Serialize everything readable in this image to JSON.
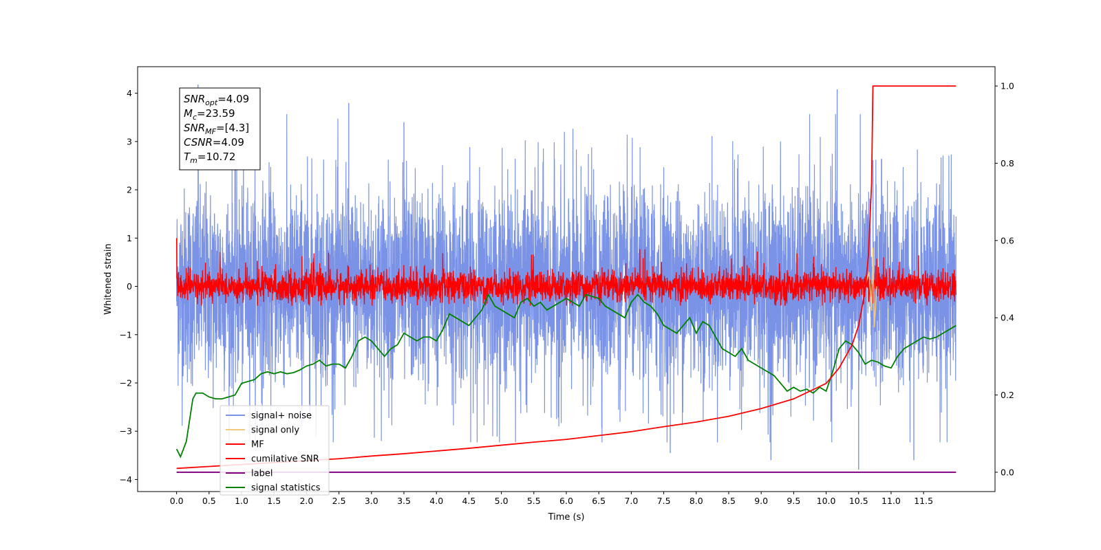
{
  "chart_data": {
    "type": "line",
    "xlabel": "Time (s)",
    "ylabel": "Whitened strain",
    "xlim": [
      -0.6,
      12.6
    ],
    "ylim_left": [
      -4.25,
      4.55
    ],
    "ylim_right": [
      -0.05,
      1.05
    ],
    "x_ticks": [
      "0.0",
      "0.5",
      "1.0",
      "1.5",
      "2.0",
      "2.5",
      "3.0",
      "3.5",
      "4.0",
      "4.5",
      "5.0",
      "5.5",
      "6.0",
      "6.5",
      "7.0",
      "7.5",
      "8.0",
      "8.5",
      "9.0",
      "9.5",
      "10.0",
      "10.5",
      "11.0",
      "11.5"
    ],
    "y_ticks_left": [
      "4",
      "3",
      "2",
      "1",
      "0",
      "−1",
      "−2",
      "−3",
      "−4"
    ],
    "y_ticks_right": [
      "1.0",
      "0.8",
      "0.6",
      "0.4",
      "0.2",
      "0.0"
    ],
    "annotation": {
      "lines": [
        {
          "sym": "SNR",
          "sub": "opt",
          "val": "=4.09"
        },
        {
          "sym": "M",
          "sub": "c",
          "val": "=23.59"
        },
        {
          "sym": "SNR",
          "sub": "MF",
          "val": "=[4.3]"
        },
        {
          "sym": "CSNR",
          "sub": "",
          "val": "=4.09"
        },
        {
          "sym": "T",
          "sub": "m",
          "val": "=10.72"
        }
      ]
    },
    "legend": {
      "placement": "lower-left",
      "entries": [
        {
          "label": "signal+ noise",
          "color": "#7b93e6"
        },
        {
          "label": "signal only",
          "color": "#f5c87a"
        },
        {
          "label": "MF",
          "color": "#ff0000"
        },
        {
          "label": "cumilative SNR",
          "color": "#ff0000"
        },
        {
          "label": "label",
          "color": "#800080"
        },
        {
          "label": "signal statistics",
          "color": "#008000"
        }
      ]
    },
    "series": [
      {
        "name": "signal+ noise",
        "axis": "left",
        "color": "#7b93e6",
        "x_range": [
          0,
          12
        ],
        "amplitude_range": [
          -3.8,
          4.2
        ],
        "spikes": [
          [
            0.33,
            4.18
          ],
          [
            2.65,
            3.8
          ],
          [
            3.5,
            3.4
          ],
          [
            10.17,
            4.08
          ],
          [
            10.5,
            -3.8
          ],
          [
            7.6,
            -3.45
          ],
          [
            9.15,
            -3.6
          ],
          [
            11.35,
            -3.6
          ]
        ]
      },
      {
        "name": "signal only",
        "axis": "left",
        "color": "#f5c87a",
        "x": [
          10.6,
          10.66,
          10.7,
          10.72,
          10.74,
          10.78
        ],
        "y": [
          0.0,
          0.3,
          -0.5,
          0.8,
          -0.85,
          0.0
        ]
      },
      {
        "name": "MF",
        "axis": "left",
        "color": "#ff0000",
        "x_range": [
          0,
          12
        ],
        "amplitude_range": [
          -0.4,
          0.85
        ],
        "start_value": 1.0
      },
      {
        "name": "cumilative SNR",
        "axis": "right",
        "color": "#ff0000",
        "x": [
          0.0,
          0.5,
          1.0,
          1.5,
          2.0,
          2.5,
          3.0,
          3.5,
          4.0,
          4.5,
          5.0,
          5.5,
          6.0,
          6.5,
          7.0,
          7.5,
          8.0,
          8.5,
          9.0,
          9.5,
          10.0,
          10.2,
          10.4,
          10.5,
          10.6,
          10.65,
          10.7,
          10.72,
          11.0,
          11.5,
          12.0
        ],
        "y": [
          0.01,
          0.015,
          0.02,
          0.025,
          0.03,
          0.035,
          0.042,
          0.048,
          0.055,
          0.062,
          0.07,
          0.078,
          0.085,
          0.095,
          0.105,
          0.118,
          0.13,
          0.145,
          0.165,
          0.19,
          0.23,
          0.27,
          0.33,
          0.38,
          0.47,
          0.56,
          0.75,
          1.0,
          1.0,
          1.0,
          1.0
        ]
      },
      {
        "name": "label",
        "axis": "right",
        "color": "#800080",
        "x": [
          0.0,
          12.0
        ],
        "y": [
          0.0,
          0.0
        ]
      },
      {
        "name": "signal statistics",
        "axis": "right",
        "color": "#008000",
        "x": [
          0.0,
          0.06,
          0.15,
          0.25,
          0.3,
          0.4,
          0.5,
          0.6,
          0.7,
          0.8,
          0.9,
          1.0,
          1.1,
          1.2,
          1.3,
          1.4,
          1.5,
          1.6,
          1.7,
          1.8,
          1.9,
          2.0,
          2.1,
          2.2,
          2.3,
          2.4,
          2.5,
          2.6,
          2.7,
          2.8,
          2.9,
          3.0,
          3.1,
          3.2,
          3.3,
          3.4,
          3.5,
          3.6,
          3.7,
          3.8,
          3.9,
          4.0,
          4.1,
          4.2,
          4.3,
          4.4,
          4.5,
          4.6,
          4.7,
          4.8,
          4.9,
          5.0,
          5.1,
          5.2,
          5.3,
          5.4,
          5.5,
          5.6,
          5.7,
          5.8,
          5.9,
          6.0,
          6.1,
          6.2,
          6.3,
          6.4,
          6.5,
          6.6,
          6.7,
          6.8,
          6.9,
          7.0,
          7.1,
          7.2,
          7.3,
          7.4,
          7.5,
          7.6,
          7.7,
          7.8,
          7.9,
          8.0,
          8.1,
          8.2,
          8.3,
          8.4,
          8.5,
          8.6,
          8.7,
          8.8,
          8.9,
          9.0,
          9.1,
          9.2,
          9.3,
          9.4,
          9.5,
          9.6,
          9.7,
          9.8,
          9.9,
          10.0,
          10.1,
          10.2,
          10.3,
          10.4,
          10.5,
          10.6,
          10.7,
          10.8,
          10.9,
          11.0,
          11.1,
          11.2,
          11.3,
          11.4,
          11.5,
          11.6,
          11.7,
          11.8,
          11.9,
          12.0
        ],
        "y": [
          0.06,
          0.04,
          0.08,
          0.19,
          0.205,
          0.205,
          0.195,
          0.19,
          0.19,
          0.195,
          0.2,
          0.23,
          0.235,
          0.24,
          0.255,
          0.26,
          0.255,
          0.26,
          0.255,
          0.258,
          0.265,
          0.275,
          0.28,
          0.29,
          0.275,
          0.28,
          0.28,
          0.27,
          0.3,
          0.34,
          0.35,
          0.34,
          0.32,
          0.3,
          0.32,
          0.33,
          0.36,
          0.35,
          0.34,
          0.35,
          0.35,
          0.34,
          0.37,
          0.41,
          0.4,
          0.39,
          0.38,
          0.4,
          0.42,
          0.46,
          0.43,
          0.42,
          0.41,
          0.4,
          0.44,
          0.45,
          0.43,
          0.44,
          0.42,
          0.43,
          0.44,
          0.45,
          0.44,
          0.43,
          0.46,
          0.455,
          0.45,
          0.43,
          0.42,
          0.41,
          0.4,
          0.44,
          0.46,
          0.44,
          0.43,
          0.41,
          0.38,
          0.37,
          0.36,
          0.38,
          0.4,
          0.36,
          0.39,
          0.38,
          0.35,
          0.32,
          0.31,
          0.3,
          0.32,
          0.29,
          0.28,
          0.27,
          0.26,
          0.25,
          0.23,
          0.21,
          0.22,
          0.21,
          0.215,
          0.205,
          0.22,
          0.21,
          0.26,
          0.32,
          0.34,
          0.33,
          0.31,
          0.28,
          0.29,
          0.285,
          0.275,
          0.27,
          0.3,
          0.32,
          0.33,
          0.34,
          0.35,
          0.345,
          0.35,
          0.36,
          0.37,
          0.38
        ]
      }
    ]
  }
}
